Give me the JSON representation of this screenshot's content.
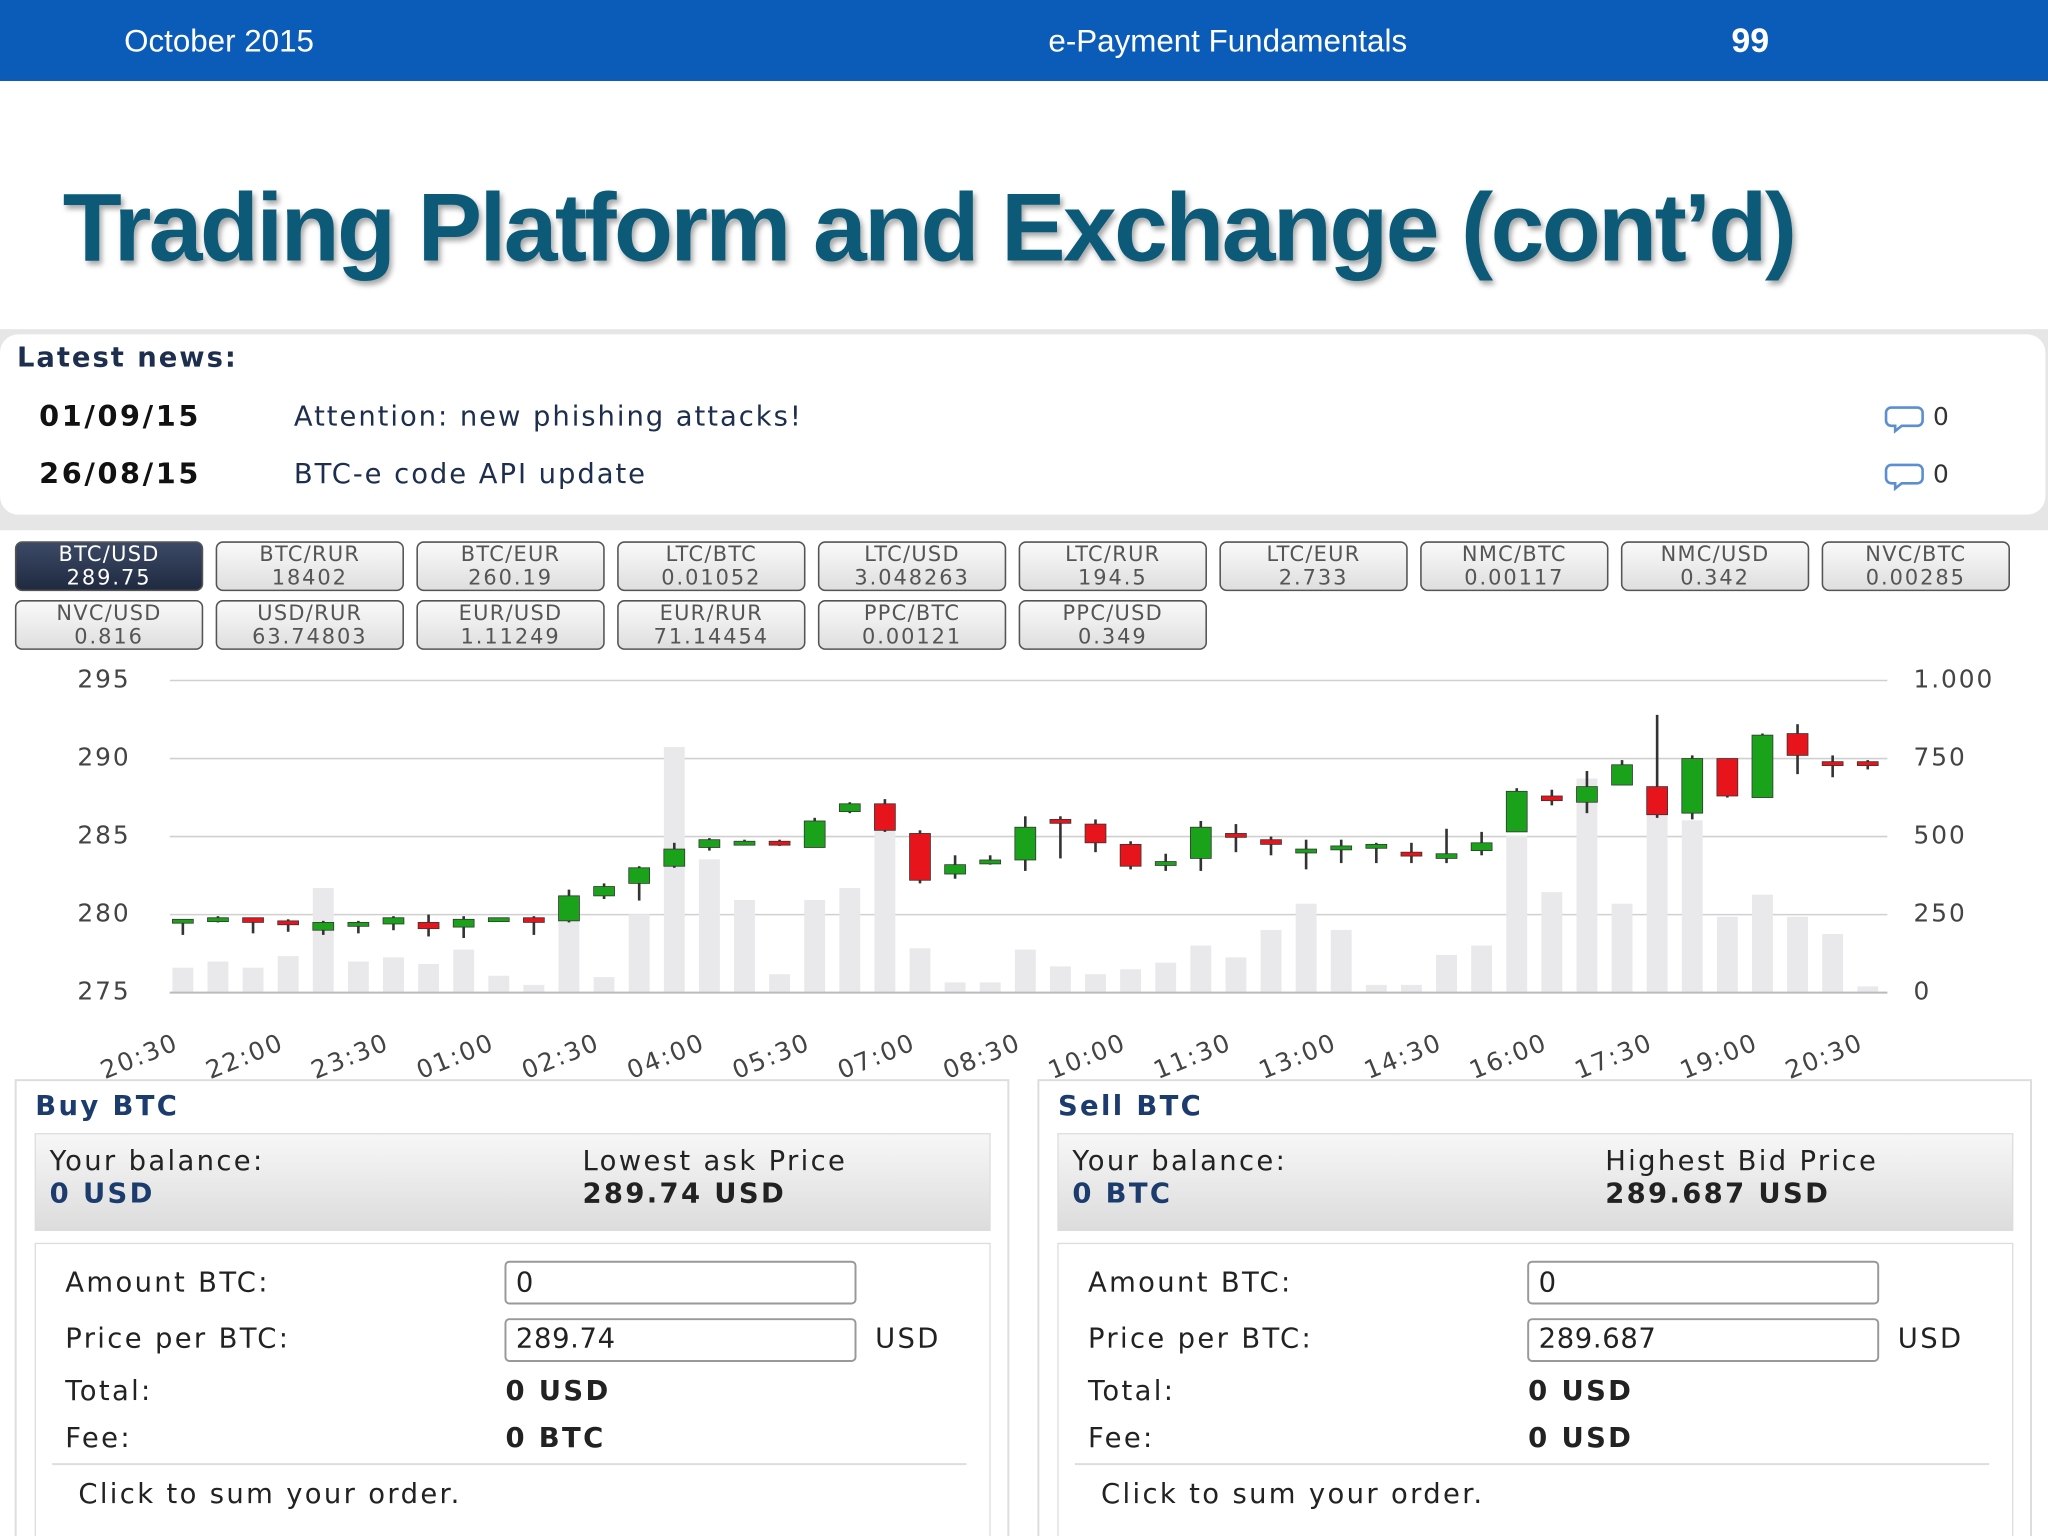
{
  "header": {
    "date": "October 2015",
    "course": "e-Payment Fundamentals",
    "page": "99"
  },
  "title": "Trading Platform and Exchange (cont’d)",
  "news": {
    "heading": "Latest news:",
    "items": [
      {
        "date": "01/09/15",
        "text": "Attention: new phishing attacks!",
        "comments": 0
      },
      {
        "date": "26/08/15",
        "text": "BTC-e code API update",
        "comments": 0
      }
    ]
  },
  "pairs": [
    {
      "name": "BTC/USD",
      "price": 289.75
    },
    {
      "name": "BTC/RUR",
      "price": 18402
    },
    {
      "name": "BTC/EUR",
      "price": 260.19
    },
    {
      "name": "LTC/BTC",
      "price": 0.01052
    },
    {
      "name": "LTC/USD",
      "price": 3.048263
    },
    {
      "name": "LTC/RUR",
      "price": 194.5
    },
    {
      "name": "LTC/EUR",
      "price": 2.733
    },
    {
      "name": "NMC/BTC",
      "price": 0.00117
    },
    {
      "name": "NMC/USD",
      "price": 0.342
    },
    {
      "name": "NVC/BTC",
      "price": 0.00285
    },
    {
      "name": "NVC/USD",
      "price": 0.816
    },
    {
      "name": "USD/RUR",
      "price": 63.74803
    },
    {
      "name": "EUR/USD",
      "price": 1.11249
    },
    {
      "name": "EUR/RUR",
      "price": 71.14454
    },
    {
      "name": "PPC/BTC",
      "price": 0.00121
    },
    {
      "name": "PPC/USD",
      "price": 0.349
    }
  ],
  "chart_data": {
    "type": "candlestick",
    "categories": [
      "20:30",
      null,
      null,
      "22:00",
      null,
      null,
      "23:30",
      null,
      null,
      "01:00",
      null,
      null,
      "02:30",
      null,
      null,
      "04:00",
      null,
      null,
      "05:30",
      null,
      null,
      "07:00",
      null,
      null,
      "08:30",
      null,
      null,
      "10:00",
      null,
      null,
      "11:30",
      null,
      null,
      "13:00",
      null,
      null,
      "14:30",
      null,
      null,
      "16:00",
      null,
      null,
      "17:30",
      null,
      null,
      "19:00",
      null,
      null,
      "20:30"
    ],
    "open": [
      279.5,
      279.7,
      279.8,
      279.6,
      279.0,
      279.3,
      279.4,
      279.5,
      279.2,
      279.7,
      279.8,
      279.6,
      281.2,
      282.0,
      283.1,
      284.3,
      284.6,
      284.7,
      284.3,
      286.6,
      287.1,
      285.2,
      282.6,
      283.3,
      283.5,
      286.1,
      285.8,
      284.5,
      283.3,
      283.6,
      285.2,
      284.8,
      284.0,
      284.2,
      284.3,
      284.0,
      283.6,
      284.1,
      285.3,
      287.6,
      287.2,
      288.3,
      288.2,
      286.5,
      290.0,
      287.5,
      291.6,
      289.8,
      289.8
    ],
    "high": [
      279.7,
      279.9,
      279.8,
      279.7,
      279.6,
      279.6,
      279.9,
      280.0,
      279.9,
      279.8,
      279.9,
      281.6,
      282.0,
      283.1,
      284.6,
      284.9,
      284.8,
      284.8,
      286.2,
      287.2,
      287.4,
      285.4,
      283.8,
      283.8,
      286.3,
      286.3,
      286.1,
      284.7,
      283.9,
      286.0,
      285.8,
      285.0,
      284.8,
      284.8,
      284.6,
      284.6,
      285.5,
      285.3,
      288.1,
      288.0,
      289.2,
      289.9,
      292.8,
      290.2,
      290.0,
      291.6,
      292.2,
      290.2,
      289.9
    ],
    "low": [
      278.7,
      279.5,
      278.8,
      278.9,
      278.7,
      278.8,
      279.0,
      278.6,
      278.5,
      279.6,
      278.7,
      279.5,
      281.0,
      280.9,
      283.0,
      284.1,
      284.5,
      284.4,
      284.3,
      286.5,
      285.3,
      282.0,
      282.3,
      283.2,
      282.8,
      283.6,
      284.0,
      282.9,
      282.8,
      282.8,
      284.0,
      283.8,
      282.9,
      283.3,
      283.3,
      283.3,
      283.3,
      283.8,
      285.3,
      287.0,
      286.5,
      288.3,
      286.2,
      286.1,
      287.5,
      287.5,
      289.0,
      288.8,
      289.3
    ],
    "close": [
      279.7,
      279.8,
      279.5,
      279.4,
      279.5,
      279.5,
      279.8,
      279.1,
      279.7,
      279.8,
      279.5,
      281.2,
      281.8,
      283.0,
      284.2,
      284.8,
      284.7,
      284.5,
      286.0,
      287.1,
      285.4,
      282.2,
      283.2,
      283.5,
      285.6,
      285.9,
      284.6,
      283.1,
      283.4,
      285.6,
      285.0,
      284.5,
      284.2,
      284.4,
      284.5,
      283.9,
      283.9,
      284.6,
      287.9,
      287.3,
      288.2,
      289.6,
      286.4,
      290.0,
      287.6,
      291.5,
      290.2,
      289.7,
      289.6
    ],
    "volume": [
      80,
      100,
      80,
      117,
      335,
      100,
      113,
      92,
      138,
      54,
      25,
      314,
      50,
      251,
      787,
      427,
      297,
      59,
      297,
      335,
      540,
      142,
      33,
      33,
      138,
      84,
      59,
      75,
      96,
      151,
      113,
      201,
      285,
      201,
      25,
      25,
      121,
      151,
      502,
      322,
      686,
      285,
      586,
      552,
      243,
      314,
      243,
      188,
      20
    ],
    "ylim": [
      275,
      295
    ],
    "yticks": [
      275,
      280,
      285,
      290,
      295
    ],
    "y2lim": [
      0,
      1000
    ],
    "y2ticks": [
      0,
      250,
      500,
      750,
      {
        "value": 1000,
        "label": "1.000"
      }
    ],
    "up_color": "#1aa31a",
    "down_color": "#e8141c",
    "volume_color": "#e9e9ec",
    "grid": true
  },
  "buy": {
    "title": "Buy BTC",
    "balance_label": "Your balance:",
    "balance": "0 USD",
    "price_label": "Lowest ask Price",
    "price": "289.74 USD",
    "amount_label": "Amount BTC:",
    "amount": "0",
    "price_per_label": "Price per BTC:",
    "price_per": "289.74",
    "currency": "USD",
    "total_label": "Total:",
    "total": "0 USD",
    "fee_label": "Fee:",
    "fee": "0 BTC",
    "hint": "Click to sum your order."
  },
  "sell": {
    "title": "Sell BTC",
    "balance_label": "Your balance:",
    "balance": "0 BTC",
    "price_label": "Highest Bid Price",
    "price": "289.687 USD",
    "amount_label": "Amount BTC:",
    "amount": "0",
    "price_per_label": "Price per BTC:",
    "price_per": "289.687",
    "currency": "USD",
    "total_label": "Total:",
    "total": "0 USD",
    "fee_label": "Fee:",
    "fee": "0 USD",
    "hint": "Click to sum your order."
  }
}
